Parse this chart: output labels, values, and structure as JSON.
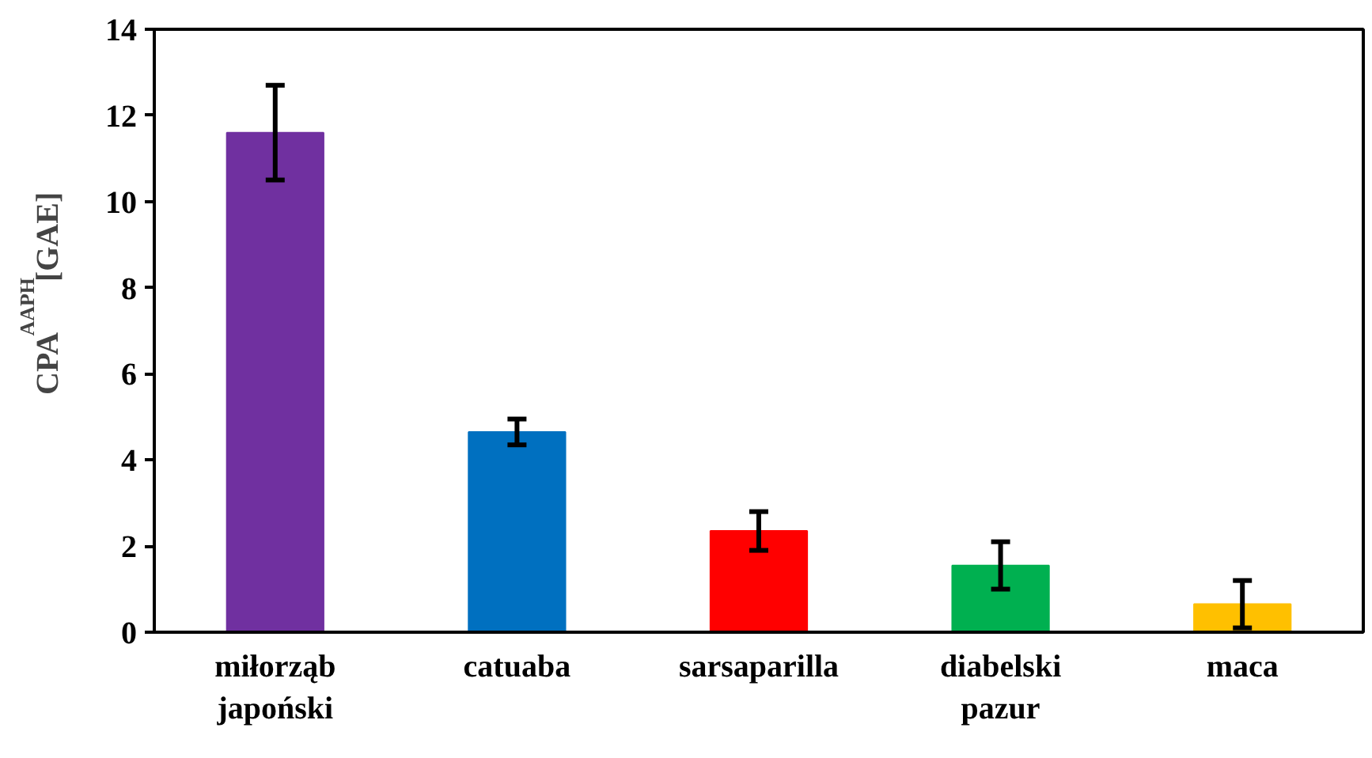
{
  "chart_data": {
    "type": "bar",
    "categories": [
      "miłorząb\njapoński",
      "catuaba",
      "sarsaparilla",
      "diabelski\npazur",
      "maca"
    ],
    "values": [
      11.6,
      4.65,
      2.35,
      1.55,
      0.65
    ],
    "colors": [
      "#7030a0",
      "#0070c0",
      "#ff0000",
      "#00b050",
      "#ffc000"
    ],
    "errors": [
      1.1,
      0.3,
      0.45,
      0.55,
      0.55
    ],
    "ylabel": "CPA$^{AAPH}$ [GAE]",
    "ylim": [
      0,
      14
    ],
    "yticks": [
      0,
      2,
      4,
      6,
      8,
      10,
      12,
      14
    ],
    "grid": false
  }
}
